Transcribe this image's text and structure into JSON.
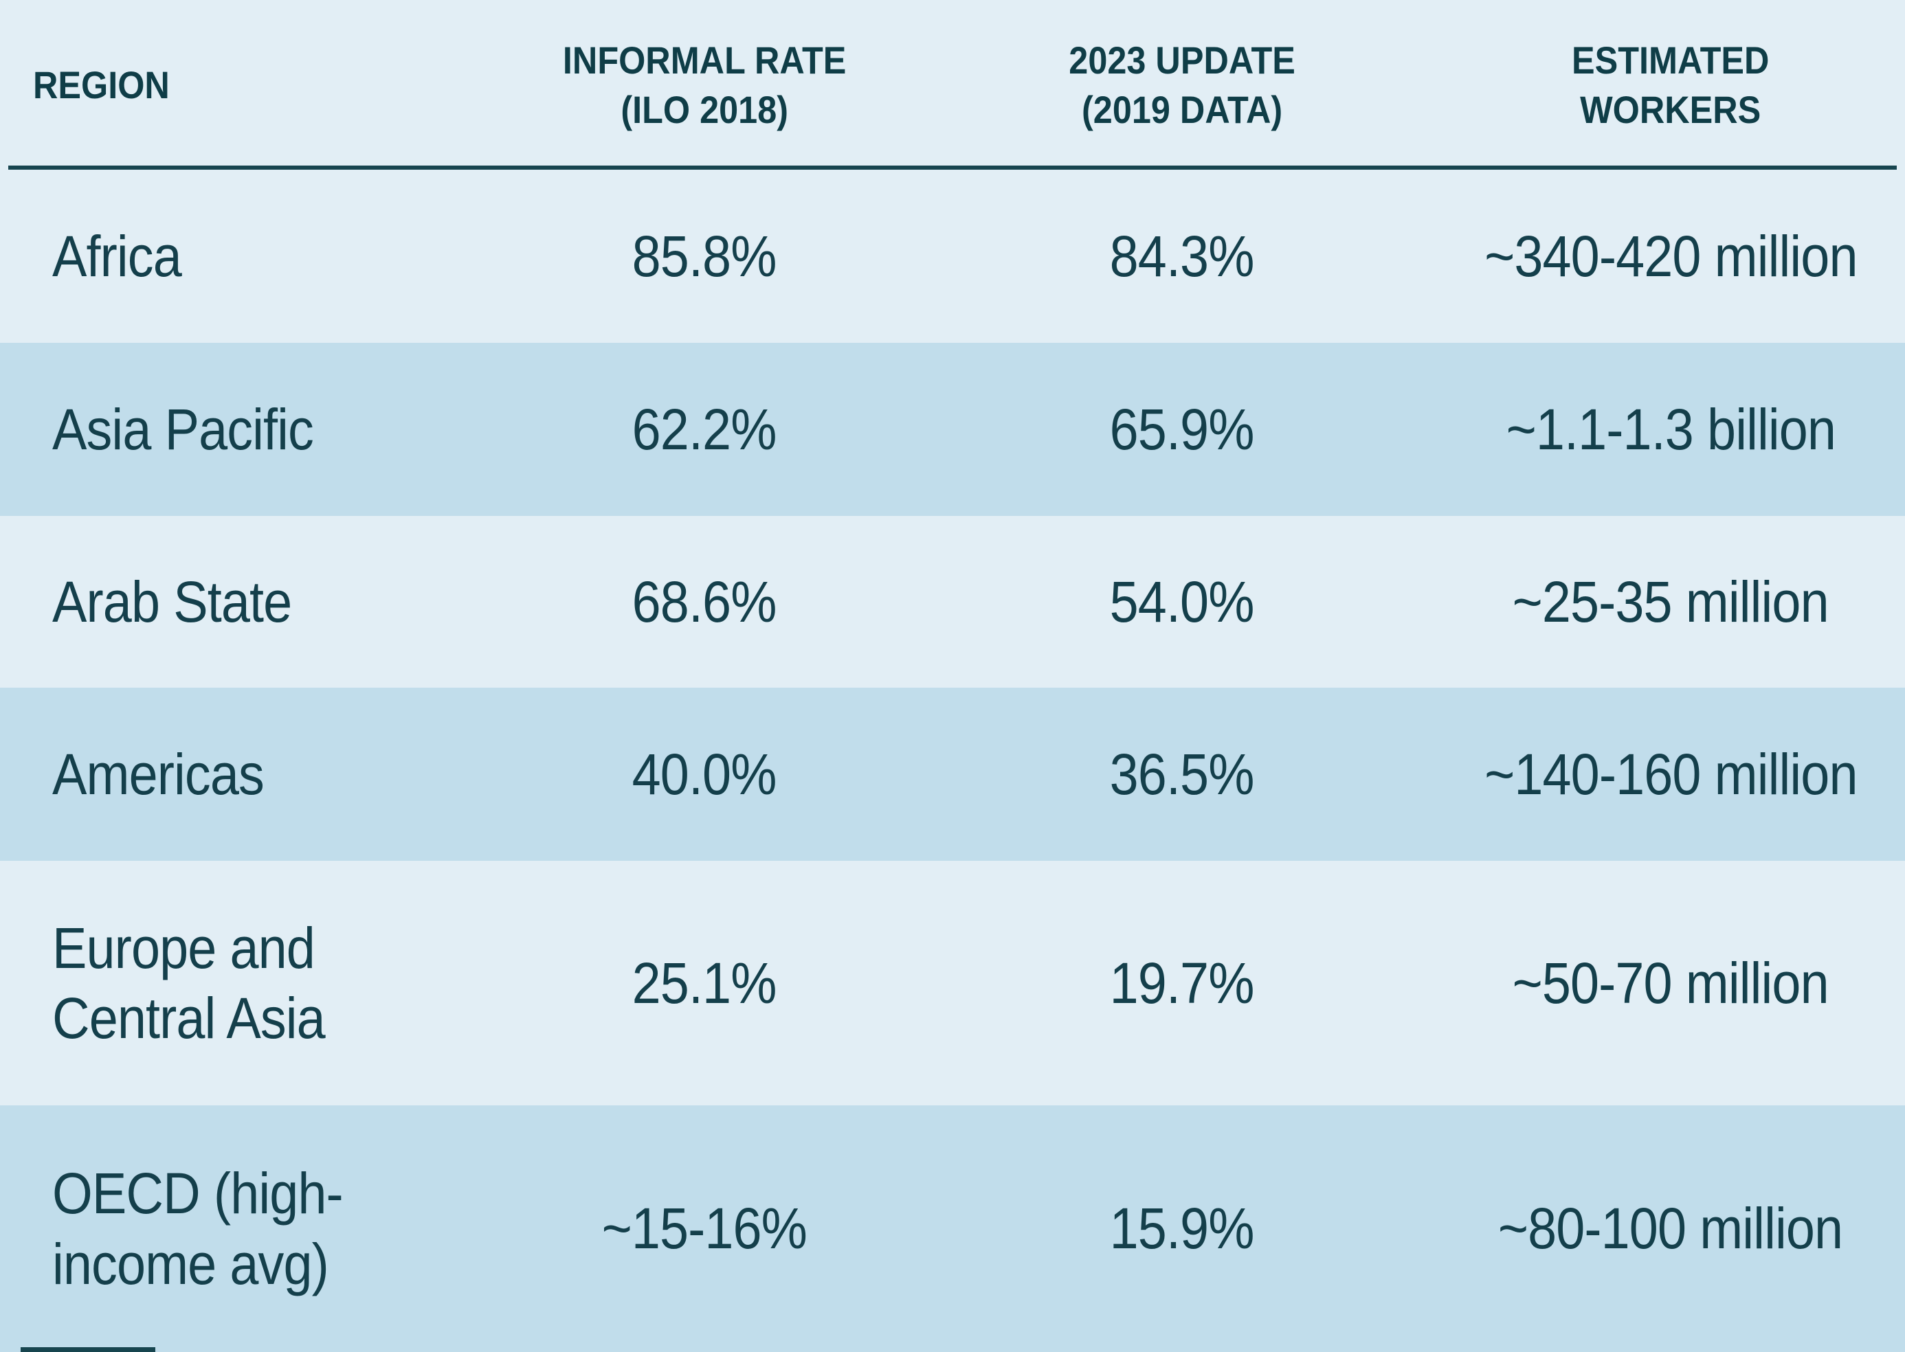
{
  "colors": {
    "row_light": "#e2eef5",
    "row_dark": "#c1ddeb",
    "text": "#143f4b",
    "header_text": "#0f3d47",
    "divider": "#17454f"
  },
  "chart_data": {
    "type": "table",
    "columns": [
      "REGION",
      "INFORMAL RATE\n(ILO 2018)",
      "2023 UPDATE\n(2019 DATA)",
      "ESTIMATED\nWORKERS"
    ],
    "rows": [
      [
        "Africa",
        "85.8%",
        "84.3%",
        "~340-420 million"
      ],
      [
        "Asia Pacific",
        "62.2%",
        "65.9%",
        "~1.1-1.3 billion"
      ],
      [
        "Arab State",
        "68.6%",
        "54.0%",
        "~25-35 million"
      ],
      [
        "Americas",
        "40.0%",
        "36.5%",
        "~140-160 million"
      ],
      [
        "Europe and\nCentral Asia",
        "25.1%",
        "19.7%",
        "~50-70 million"
      ],
      [
        "OECD (high-\nincome avg)",
        "~15-16%",
        "15.9%",
        "~80-100 million"
      ]
    ],
    "layout": {
      "striped": true,
      "first_column_align": "left",
      "other_columns_align": "center"
    }
  }
}
